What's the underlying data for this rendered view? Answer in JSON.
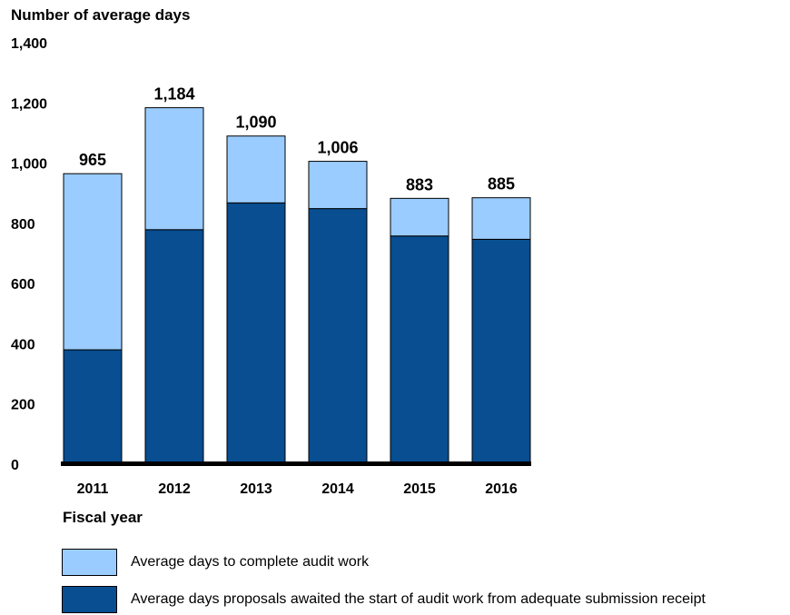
{
  "chart_data": {
    "type": "bar",
    "stacked": true,
    "ylabel": "Number of average days",
    "xlabel": "Fiscal year",
    "categories": [
      "2011",
      "2012",
      "2013",
      "2014",
      "2015",
      "2016"
    ],
    "totals": [
      "965",
      "1,184",
      "1,090",
      "1,006",
      "883",
      "885"
    ],
    "total_values": [
      965,
      1184,
      1090,
      1006,
      883,
      885
    ],
    "series": [
      {
        "name": "Average days proposals awaited the start of audit work from adequate submission receipt",
        "color": "#084E91",
        "values": [
          380,
          779,
          868,
          849,
          758,
          747
        ]
      },
      {
        "name": "Average days to complete audit work",
        "color": "#9ACCFF",
        "values": [
          585,
          405,
          222,
          157,
          125,
          138
        ]
      }
    ],
    "ylim": [
      0,
      1400
    ],
    "yticks": [
      "0",
      "200",
      "400",
      "600",
      "800",
      "1,000",
      "1,200",
      "1,400"
    ],
    "ytick_values": [
      0,
      200,
      400,
      600,
      800,
      1000,
      1200,
      1400
    ],
    "grid": false,
    "legend_position": "bottom"
  }
}
